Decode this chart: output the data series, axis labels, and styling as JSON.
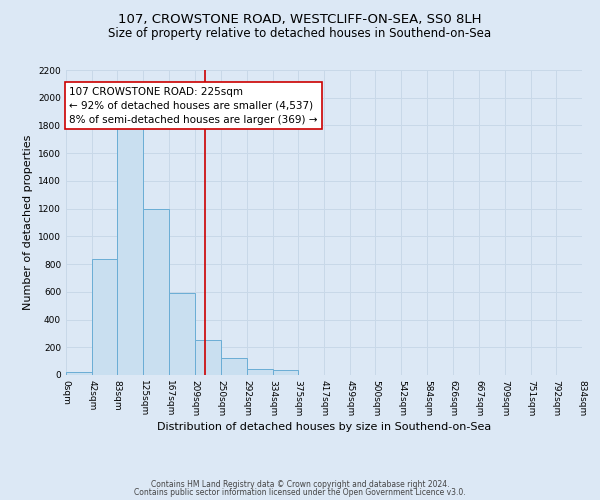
{
  "title": "107, CROWSTONE ROAD, WESTCLIFF-ON-SEA, SS0 8LH",
  "subtitle": "Size of property relative to detached houses in Southend-on-Sea",
  "xlabel": "Distribution of detached houses by size in Southend-on-Sea",
  "ylabel": "Number of detached properties",
  "bin_edges": [
    0,
    42,
    83,
    125,
    167,
    209,
    250,
    292,
    334,
    375,
    417,
    459,
    500,
    542,
    584,
    626,
    667,
    709,
    751,
    792,
    834
  ],
  "bin_counts": [
    25,
    840,
    1800,
    1200,
    590,
    255,
    125,
    45,
    35,
    0,
    0,
    0,
    0,
    0,
    0,
    0,
    0,
    0,
    0,
    0
  ],
  "property_value": 225,
  "bar_color": "#c9dff0",
  "bar_edge_color": "#6aadd5",
  "line_color": "#cc0000",
  "annotation_line1": "107 CROWSTONE ROAD: 225sqm",
  "annotation_line2": "← 92% of detached houses are smaller (4,537)",
  "annotation_line3": "8% of semi-detached houses are larger (369) →",
  "annotation_box_color": "#ffffff",
  "annotation_box_edge": "#cc0000",
  "background_color": "#dce8f5",
  "ylim": [
    0,
    2200
  ],
  "yticks": [
    0,
    200,
    400,
    600,
    800,
    1000,
    1200,
    1400,
    1600,
    1800,
    2000,
    2200
  ],
  "footer_line1": "Contains HM Land Registry data © Crown copyright and database right 2024.",
  "footer_line2": "Contains public sector information licensed under the Open Government Licence v3.0.",
  "title_fontsize": 9.5,
  "subtitle_fontsize": 8.5,
  "label_fontsize": 8,
  "tick_fontsize": 6.5,
  "annotation_fontsize": 7.5,
  "footer_fontsize": 5.5,
  "grid_color": "#c8d8e8"
}
